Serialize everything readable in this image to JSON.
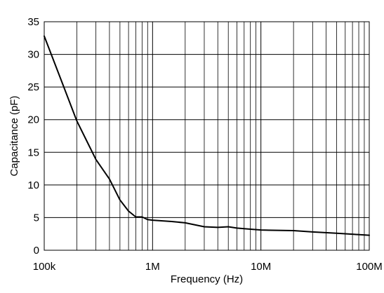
{
  "chart_data": {
    "type": "line",
    "title": "",
    "xlabel": "Frequency (Hz)",
    "ylabel": "Capacitance (pF)",
    "x_scale": "log",
    "xlim": [
      100000,
      100000000
    ],
    "ylim": [
      0,
      35
    ],
    "y_ticks": [
      0,
      5,
      10,
      15,
      20,
      25,
      30,
      35
    ],
    "x_tick_values": [
      100000,
      1000000,
      10000000,
      100000000
    ],
    "x_tick_labels": [
      "100k",
      "1M",
      "10M",
      "100M"
    ],
    "grid": true,
    "legend": "none",
    "line_color": "#000000",
    "series": [
      {
        "x": [
          100000,
          150000,
          200000,
          300000,
          400000,
          500000,
          600000,
          700000,
          800000,
          900000,
          1000000,
          1500000,
          2000000,
          3000000,
          4000000,
          5000000,
          6000000,
          7000000,
          10000000,
          20000000,
          30000000,
          50000000,
          70000000,
          100000000
        ],
        "y": [
          32.8,
          25.2,
          19.8,
          13.9,
          10.9,
          7.7,
          6.0,
          5.1,
          5.1,
          4.7,
          4.6,
          4.4,
          4.2,
          3.6,
          3.5,
          3.6,
          3.4,
          3.3,
          3.1,
          3.0,
          2.8,
          2.6,
          2.45,
          2.3
        ]
      }
    ]
  }
}
